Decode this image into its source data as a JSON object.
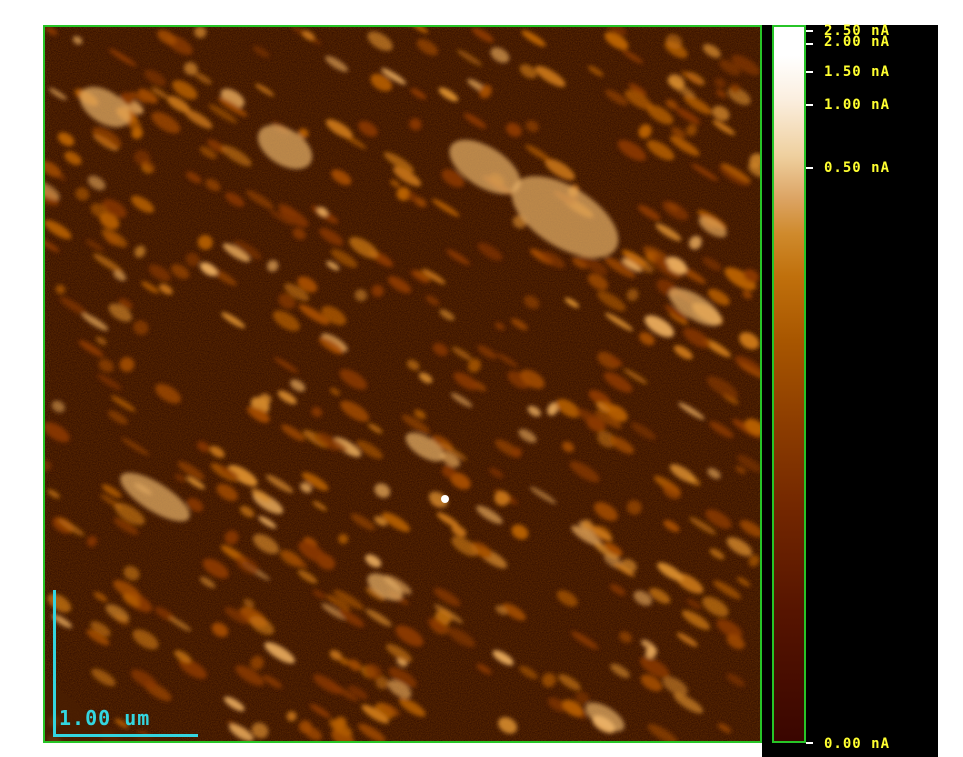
{
  "image": {
    "description_colors": {
      "background_dark": "#2a0800",
      "grain_mid": "#c0700c",
      "grain_bright": "#f2c57a",
      "frame_green": "#27c427",
      "label_yellow": "#ffff30",
      "scale_cyan": "#33d6e0"
    }
  },
  "colorbar": {
    "labels": [
      {
        "text": "2.50 nA",
        "value": 2.5
      },
      {
        "text": "2.00 nA",
        "value": 2.0
      },
      {
        "text": "1.50 nA",
        "value": 1.5
      },
      {
        "text": "1.00 nA",
        "value": 1.0
      },
      {
        "text": "0.50 nA",
        "value": 0.5
      },
      {
        "text": "0.00 nA",
        "value": 0.0
      }
    ]
  },
  "scale_bar": {
    "label": "1.00 um"
  }
}
